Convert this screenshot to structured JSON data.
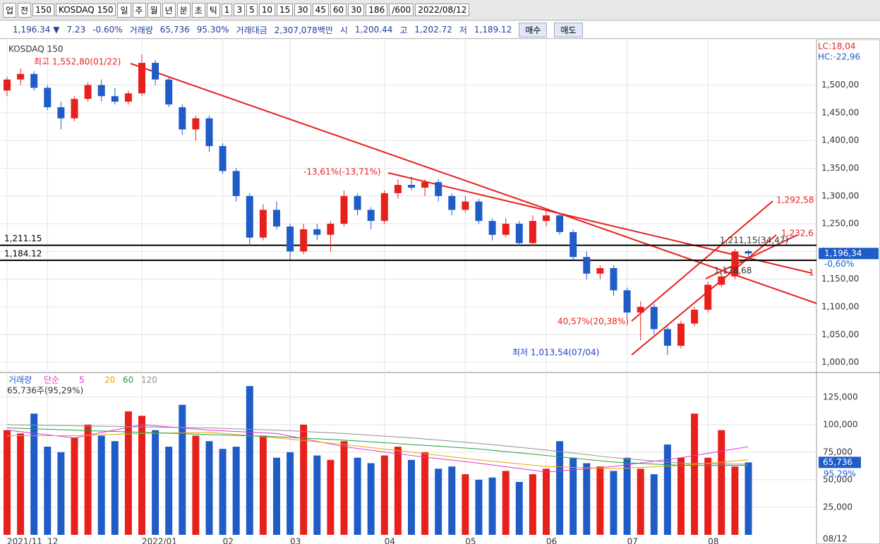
{
  "toolbar": {
    "items": [
      "업",
      "전",
      "150",
      "KOSDAQ 150",
      "일",
      "주",
      "월",
      "년",
      "분",
      "초",
      "틱",
      "1",
      "3",
      "5",
      "10",
      "15",
      "30",
      "45",
      "60",
      "30",
      "186",
      "/600",
      "2022/08/12"
    ]
  },
  "info_bar": {
    "items": [
      "1,196.34 ▼",
      "7.23",
      "-0.60%",
      "거래량",
      "65,736",
      "95.30%",
      "거래대금",
      "2,307,078백만",
      "시",
      "1,200.44",
      "고",
      "1,202.72",
      "저",
      "1,189.12"
    ],
    "buy": "매수",
    "sell": "매도"
  },
  "chart_data": [
    {
      "type": "candlestick",
      "title": "KOSDAQ 150",
      "up_color": "#e8201c",
      "down_color": "#1f5cc8",
      "categories": [
        "2021/11",
        null,
        null,
        "12",
        null,
        null,
        null,
        null,
        null,
        null,
        "2022/01",
        null,
        null,
        null,
        null,
        null,
        "02",
        null,
        null,
        null,
        null,
        "03",
        null,
        null,
        null,
        null,
        null,
        null,
        "04",
        null,
        null,
        null,
        null,
        null,
        "05",
        null,
        null,
        null,
        null,
        null,
        "06",
        null,
        null,
        null,
        null,
        null,
        "07",
        null,
        null,
        null,
        null,
        null,
        "08",
        null,
        null,
        null
      ],
      "open": [
        1490,
        1510,
        1520,
        1495,
        1460,
        1440,
        1475,
        1500,
        1480,
        1470,
        1485,
        1540,
        1510,
        1460,
        1420,
        1440,
        1390,
        1345,
        1300,
        1225,
        1275,
        1245,
        1200,
        1240,
        1230,
        1250,
        1300,
        1275,
        1255,
        1305,
        1320,
        1315,
        1325,
        1300,
        1275,
        1290,
        1255,
        1230,
        1250,
        1215,
        1255,
        1265,
        1235,
        1190,
        1160,
        1170,
        1130,
        1090,
        1100,
        1060,
        1030,
        1070,
        1095,
        1140,
        1155,
        1200.44
      ],
      "high": [
        1515,
        1530,
        1525,
        1500,
        1470,
        1480,
        1505,
        1510,
        1495,
        1490,
        1555,
        1545,
        1515,
        1465,
        1445,
        1445,
        1395,
        1350,
        1305,
        1285,
        1290,
        1250,
        1250,
        1250,
        1255,
        1310,
        1305,
        1280,
        1310,
        1330,
        1335,
        1330,
        1330,
        1305,
        1300,
        1295,
        1260,
        1260,
        1255,
        1265,
        1275,
        1270,
        1240,
        1200,
        1175,
        1175,
        1135,
        1110,
        1105,
        1065,
        1075,
        1100,
        1145,
        1160,
        1205,
        1202.72
      ],
      "low": [
        1480,
        1500,
        1490,
        1455,
        1420,
        1435,
        1470,
        1470,
        1465,
        1465,
        1480,
        1500,
        1460,
        1410,
        1400,
        1380,
        1340,
        1290,
        1210,
        1220,
        1240,
        1185,
        1195,
        1220,
        1200,
        1245,
        1265,
        1240,
        1250,
        1295,
        1310,
        1300,
        1290,
        1265,
        1270,
        1250,
        1220,
        1225,
        1210,
        1210,
        1245,
        1230,
        1185,
        1150,
        1150,
        1120,
        1080,
        1040,
        1050,
        1013.54,
        1025,
        1065,
        1090,
        1135,
        1150,
        1189.12
      ],
      "close": [
        1510,
        1520,
        1495,
        1460,
        1440,
        1475,
        1500,
        1480,
        1470,
        1485,
        1540,
        1510,
        1465,
        1420,
        1440,
        1390,
        1345,
        1300,
        1225,
        1275,
        1245,
        1200,
        1240,
        1230,
        1250,
        1300,
        1275,
        1255,
        1305,
        1320,
        1315,
        1325,
        1300,
        1275,
        1290,
        1255,
        1230,
        1250,
        1215,
        1255,
        1265,
        1235,
        1190,
        1160,
        1170,
        1130,
        1090,
        1100,
        1060,
        1030,
        1070,
        1095,
        1140,
        1155,
        1200,
        1196.34
      ],
      "ylim": [
        983,
        1577
      ],
      "yticks": [
        {
          "value": 1000,
          "label": "1,000,00"
        },
        {
          "value": 1050,
          "label": "1,050,00"
        },
        {
          "value": 1100,
          "label": "1,100,00"
        },
        {
          "value": 1150,
          "label": "1,150,00"
        },
        {
          "value": 1200,
          "label": "1,200,00"
        },
        {
          "value": 1250,
          "label": "1,250,00"
        },
        {
          "value": 1300,
          "label": "1,300,00"
        },
        {
          "value": 1350,
          "label": "1,350,00"
        },
        {
          "value": 1400,
          "label": "1,400,00"
        },
        {
          "value": 1450,
          "label": "1,450,00"
        },
        {
          "value": 1500,
          "label": "1,500,00"
        }
      ],
      "hlines": [
        {
          "value": 1211.15,
          "label": "1,211.15"
        },
        {
          "value": 1184.12,
          "label": "1,184.12"
        }
      ],
      "last_label": {
        "value": 1196.34,
        "label": "1,196,34"
      },
      "change_label": "-0,60%",
      "lc": "LC:18,04",
      "hc": "HC:-22,96",
      "annotations": [
        "최고 1,552,80(01/22)",
        "-13,61%(-13,71%)",
        "40,57%(20,38%)",
        "최저 1,013,54(07/04)",
        "1,292,58",
        "1,232,6",
        "1,211,15(34,47)",
        "1,178,68",
        "1"
      ],
      "end_date": "08/12",
      "grid": true
    },
    {
      "type": "bar",
      "title": "거래량",
      "color_up": "#e8201c",
      "color_down": "#1f5cc8",
      "values": [
        95000,
        92000,
        110000,
        80000,
        75000,
        88000,
        100000,
        90000,
        85000,
        112000,
        108000,
        95000,
        80000,
        118000,
        90000,
        85000,
        78000,
        80000,
        135000,
        90000,
        70000,
        75000,
        100000,
        72000,
        68000,
        85000,
        70000,
        65000,
        72000,
        80000,
        68000,
        75000,
        60000,
        62000,
        55000,
        50000,
        52000,
        58000,
        48000,
        55000,
        60000,
        85000,
        70000,
        65000,
        62000,
        58000,
        70000,
        60000,
        55000,
        82000,
        70000,
        110000,
        70000,
        95000,
        62000,
        65736
      ],
      "ylim": [
        0,
        146000
      ],
      "yticks": [
        {
          "value": 25000,
          "label": "25,000"
        },
        {
          "value": 50000,
          "label": "50,000"
        },
        {
          "value": 75000,
          "label": "75,000"
        },
        {
          "value": 100000,
          "label": "100,000"
        },
        {
          "value": 125000,
          "label": "125,000"
        }
      ],
      "ma_title": "단순",
      "ma": [
        {
          "name": "5",
          "color": "#e030d8",
          "x": [
            0,
            5,
            10,
            15,
            20,
            25,
            30,
            35,
            40,
            45,
            50,
            55
          ],
          "values": [
            95000,
            88000,
            100000,
            95000,
            92000,
            80000,
            72000,
            65000,
            57000,
            62000,
            70000,
            80000
          ]
        },
        {
          "name": "20",
          "color": "#f0a000",
          "x": [
            0,
            5,
            10,
            15,
            20,
            25,
            30,
            35,
            40,
            45,
            50,
            55
          ],
          "values": [
            90000,
            90000,
            92000,
            93000,
            88000,
            82000,
            75000,
            68000,
            62000,
            60000,
            63000,
            68000
          ]
        },
        {
          "name": "60",
          "color": "#20a040",
          "x": [
            0,
            5,
            10,
            15,
            20,
            25,
            30,
            35,
            40,
            45,
            50,
            55
          ],
          "values": [
            97000,
            95000,
            93000,
            91000,
            89000,
            86000,
            82000,
            78000,
            72000,
            66000,
            63000,
            63000
          ]
        },
        {
          "name": "120",
          "color": "#909090",
          "x": [
            0,
            5,
            10,
            15,
            20,
            25,
            30,
            35,
            40,
            45,
            50,
            55
          ],
          "values": [
            100000,
            99000,
            98000,
            97000,
            95000,
            92000,
            88000,
            83000,
            77000,
            70000,
            65000,
            64000
          ]
        }
      ],
      "last_label": {
        "value": 65736,
        "label": "65,736"
      },
      "pct_label": "95,29%",
      "note": "65,736주(95,29%)"
    }
  ]
}
